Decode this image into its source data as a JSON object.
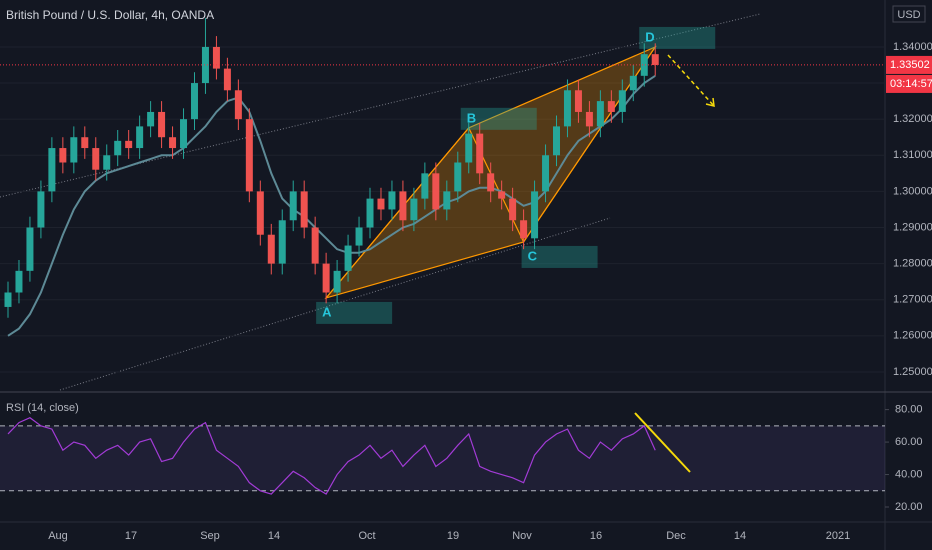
{
  "chart_data": {
    "type": "candlestick",
    "title": "British Pound / U.S. Dollar, 4h, OANDA",
    "currency": "USD",
    "up_color": "#26a69a",
    "down_color": "#ef5350",
    "open": [
      1.268,
      1.272,
      1.278,
      1.29,
      1.3,
      1.312,
      1.308,
      1.315,
      1.312,
      1.306,
      1.31,
      1.314,
      1.312,
      1.318,
      1.322,
      1.315,
      1.312,
      1.32,
      1.33,
      1.34,
      1.334,
      1.328,
      1.32,
      1.3,
      1.288,
      1.28,
      1.292,
      1.3,
      1.29,
      1.28,
      1.272,
      1.278,
      1.285,
      1.29,
      1.298,
      1.295,
      1.3,
      1.292,
      1.298,
      1.305,
      1.295,
      1.3,
      1.308,
      1.316,
      1.305,
      1.3,
      1.298,
      1.292,
      1.287,
      1.3,
      1.31,
      1.318,
      1.328,
      1.322,
      1.318,
      1.325,
      1.322,
      1.328,
      1.332,
      1.338
    ],
    "high": [
      1.275,
      1.281,
      1.293,
      1.303,
      1.315,
      1.315,
      1.318,
      1.318,
      1.315,
      1.313,
      1.317,
      1.317,
      1.321,
      1.325,
      1.325,
      1.318,
      1.323,
      1.333,
      1.348,
      1.343,
      1.337,
      1.331,
      1.323,
      1.303,
      1.291,
      1.295,
      1.303,
      1.303,
      1.293,
      1.283,
      1.281,
      1.288,
      1.293,
      1.301,
      1.301,
      1.303,
      1.303,
      1.301,
      1.308,
      1.308,
      1.303,
      1.311,
      1.319,
      1.319,
      1.308,
      1.303,
      1.301,
      1.295,
      1.303,
      1.313,
      1.321,
      1.331,
      1.331,
      1.325,
      1.328,
      1.328,
      1.331,
      1.335,
      1.341,
      1.341
    ],
    "low": [
      1.265,
      1.269,
      1.275,
      1.287,
      1.297,
      1.305,
      1.305,
      1.309,
      1.303,
      1.303,
      1.307,
      1.309,
      1.309,
      1.315,
      1.312,
      1.309,
      1.309,
      1.317,
      1.327,
      1.331,
      1.325,
      1.317,
      1.297,
      1.285,
      1.277,
      1.277,
      1.289,
      1.287,
      1.277,
      1.269,
      1.269,
      1.275,
      1.282,
      1.287,
      1.292,
      1.292,
      1.289,
      1.289,
      1.295,
      1.292,
      1.292,
      1.297,
      1.305,
      1.302,
      1.297,
      1.295,
      1.289,
      1.284,
      1.284,
      1.297,
      1.307,
      1.315,
      1.319,
      1.315,
      1.315,
      1.319,
      1.319,
      1.325,
      1.329,
      1.332
    ],
    "close": [
      1.272,
      1.278,
      1.29,
      1.3,
      1.312,
      1.308,
      1.315,
      1.312,
      1.306,
      1.31,
      1.314,
      1.312,
      1.318,
      1.322,
      1.315,
      1.312,
      1.32,
      1.33,
      1.34,
      1.334,
      1.328,
      1.32,
      1.3,
      1.288,
      1.28,
      1.292,
      1.3,
      1.29,
      1.28,
      1.272,
      1.278,
      1.285,
      1.29,
      1.298,
      1.295,
      1.3,
      1.292,
      1.298,
      1.305,
      1.295,
      1.3,
      1.308,
      1.316,
      1.305,
      1.3,
      1.298,
      1.292,
      1.287,
      1.3,
      1.31,
      1.318,
      1.328,
      1.322,
      1.318,
      1.325,
      1.322,
      1.328,
      1.332,
      1.338,
      1.335
    ],
    "moving_average": {
      "color": "#5d8a96",
      "values": [
        1.26,
        1.262,
        1.266,
        1.272,
        1.28,
        1.288,
        1.295,
        1.3,
        1.303,
        1.305,
        1.306,
        1.307,
        1.308,
        1.309,
        1.31,
        1.31,
        1.312,
        1.315,
        1.318,
        1.322,
        1.325,
        1.326,
        1.322,
        1.314,
        1.305,
        1.298,
        1.295,
        1.293,
        1.29,
        1.287,
        1.284,
        1.283,
        1.283,
        1.284,
        1.286,
        1.288,
        1.29,
        1.291,
        1.293,
        1.295,
        1.297,
        1.298,
        1.3,
        1.301,
        1.301,
        1.3,
        1.298,
        1.296,
        1.297,
        1.3,
        1.305,
        1.31,
        1.314,
        1.316,
        1.318,
        1.32,
        1.323,
        1.327,
        1.33,
        1.332
      ]
    },
    "ylim": [
      1.245,
      1.353
    ],
    "yticks": [
      {
        "value": 1.25,
        "label": "1.25000"
      },
      {
        "value": 1.26,
        "label": "1.26000"
      },
      {
        "value": 1.27,
        "label": "1.27000"
      },
      {
        "value": 1.28,
        "label": "1.28000"
      },
      {
        "value": 1.29,
        "label": "1.29000"
      },
      {
        "value": 1.3,
        "label": "1.30000"
      },
      {
        "value": 1.31,
        "label": "1.31000"
      },
      {
        "value": 1.32,
        "label": "1.32000"
      },
      {
        "value": 1.33,
        "label": "1.33000"
      },
      {
        "value": 1.34,
        "label": "1.34000"
      }
    ],
    "last_price": {
      "value": 1.33502,
      "label": "1.33502",
      "color": "#f23645"
    },
    "countdown": "03:14:57",
    "pattern": {
      "color": "#ff9800",
      "points": [
        {
          "label": "A",
          "price": 1.2705
        },
        {
          "label": "B",
          "price": 1.3176
        },
        {
          "label": "C",
          "price": 1.286
        },
        {
          "label": "D",
          "price": 1.34
        }
      ]
    },
    "x_labels": [
      "Aug",
      "17",
      "Sep",
      "14",
      "Oct",
      "19",
      "Nov",
      "16",
      "Dec",
      "14",
      "2021"
    ],
    "rsi": {
      "title": "RSI (14, close)",
      "color": "#a23bd6",
      "values": [
        65,
        72,
        75,
        70,
        68,
        55,
        60,
        58,
        50,
        55,
        58,
        52,
        60,
        62,
        48,
        50,
        60,
        68,
        72,
        55,
        50,
        45,
        35,
        30,
        28,
        35,
        42,
        38,
        32,
        28,
        40,
        48,
        52,
        58,
        50,
        55,
        45,
        52,
        58,
        45,
        50,
        58,
        65,
        45,
        42,
        40,
        38,
        35,
        52,
        60,
        65,
        68,
        55,
        50,
        60,
        55,
        62,
        65,
        70,
        55
      ],
      "ylim": [
        12,
        89
      ],
      "yticks": [
        {
          "value": 20,
          "label": "20.00"
        },
        {
          "value": 40,
          "label": "40.00"
        },
        {
          "value": 60,
          "label": "60.00"
        },
        {
          "value": 80,
          "label": "80.00"
        }
      ],
      "bands": [
        30,
        70
      ]
    }
  }
}
